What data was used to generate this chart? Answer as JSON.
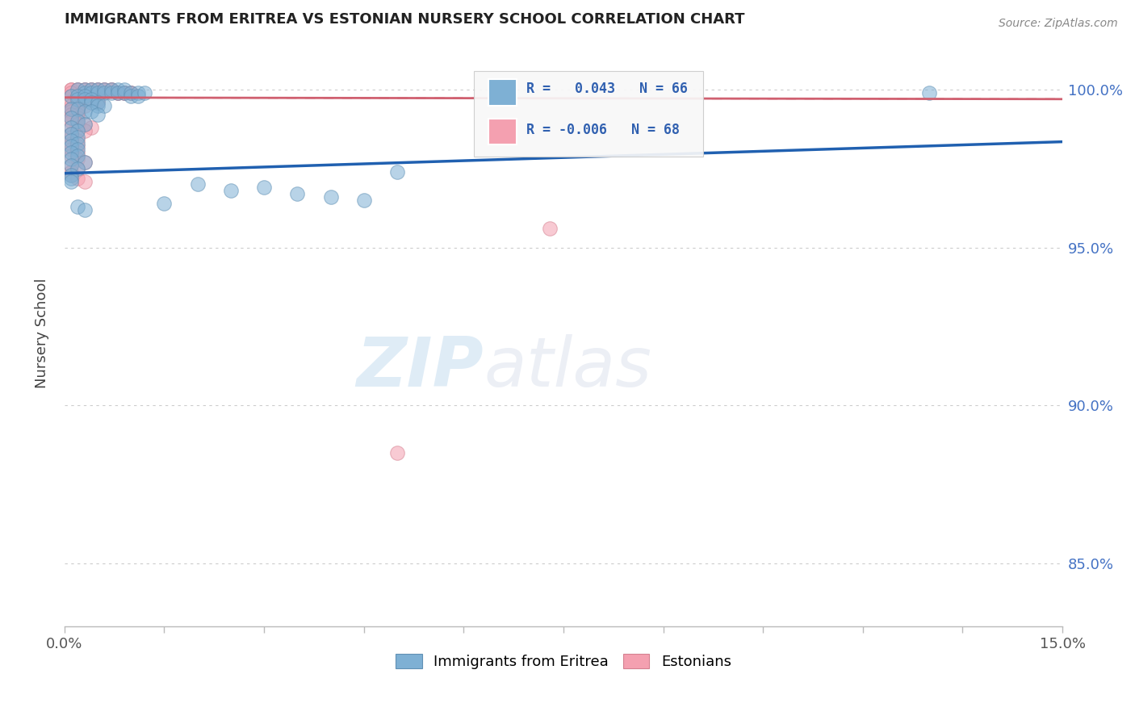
{
  "title": "IMMIGRANTS FROM ERITREA VS ESTONIAN NURSERY SCHOOL CORRELATION CHART",
  "source": "Source: ZipAtlas.com",
  "ylabel": "Nursery School",
  "xlim": [
    0.0,
    0.15
  ],
  "ylim": [
    0.83,
    1.016
  ],
  "ytick_labels_right": [
    "85.0%",
    "90.0%",
    "95.0%",
    "100.0%"
  ],
  "ytick_positions_right": [
    0.85,
    0.9,
    0.95,
    1.0
  ],
  "blue_color": "#7EB0D4",
  "blue_edge_color": "#6090B4",
  "pink_color": "#F4A0B0",
  "pink_edge_color": "#D48090",
  "blue_line_color": "#2060B0",
  "pink_line_color": "#D06070",
  "R_blue": 0.043,
  "N_blue": 66,
  "R_pink": -0.006,
  "N_pink": 68,
  "legend_label_blue": "Immigrants from Eritrea",
  "legend_label_pink": "Estonians",
  "watermark_zip": "ZIP",
  "watermark_atlas": "atlas",
  "blue_line_x": [
    0.0,
    0.15
  ],
  "blue_line_y": [
    0.9735,
    0.9835
  ],
  "pink_line_x": [
    0.0,
    0.15
  ],
  "pink_line_y": [
    0.9975,
    0.997
  ],
  "blue_x": [
    0.002,
    0.003,
    0.003,
    0.004,
    0.004,
    0.005,
    0.005,
    0.006,
    0.006,
    0.007,
    0.007,
    0.008,
    0.008,
    0.009,
    0.009,
    0.01,
    0.01,
    0.011,
    0.011,
    0.012,
    0.001,
    0.002,
    0.002,
    0.003,
    0.003,
    0.004,
    0.004,
    0.005,
    0.005,
    0.006,
    0.001,
    0.002,
    0.003,
    0.004,
    0.005,
    0.001,
    0.002,
    0.003,
    0.001,
    0.002,
    0.001,
    0.002,
    0.001,
    0.002,
    0.001,
    0.002,
    0.001,
    0.002,
    0.001,
    0.003,
    0.001,
    0.002,
    0.05,
    0.001,
    0.001,
    0.001,
    0.02,
    0.03,
    0.025,
    0.035,
    0.04,
    0.13,
    0.045,
    0.015,
    0.002,
    0.003
  ],
  "blue_y": [
    1.0,
    1.0,
    0.999,
    1.0,
    0.999,
    1.0,
    0.999,
    1.0,
    0.999,
    1.0,
    0.999,
    1.0,
    0.999,
    1.0,
    0.999,
    0.999,
    0.998,
    0.999,
    0.998,
    0.999,
    0.998,
    0.998,
    0.997,
    0.998,
    0.997,
    0.997,
    0.996,
    0.996,
    0.995,
    0.995,
    0.994,
    0.994,
    0.993,
    0.993,
    0.992,
    0.991,
    0.99,
    0.989,
    0.988,
    0.987,
    0.986,
    0.985,
    0.984,
    0.983,
    0.982,
    0.981,
    0.98,
    0.979,
    0.978,
    0.977,
    0.976,
    0.975,
    0.974,
    0.973,
    0.972,
    0.971,
    0.97,
    0.969,
    0.968,
    0.967,
    0.966,
    0.999,
    0.965,
    0.964,
    0.963,
    0.962
  ],
  "pink_x": [
    0.001,
    0.001,
    0.002,
    0.002,
    0.003,
    0.003,
    0.004,
    0.004,
    0.005,
    0.005,
    0.006,
    0.006,
    0.007,
    0.007,
    0.008,
    0.008,
    0.009,
    0.009,
    0.01,
    0.01,
    0.001,
    0.001,
    0.002,
    0.002,
    0.003,
    0.003,
    0.004,
    0.004,
    0.005,
    0.005,
    0.001,
    0.002,
    0.003,
    0.001,
    0.002,
    0.001,
    0.002,
    0.001,
    0.002,
    0.001,
    0.002,
    0.001,
    0.002,
    0.001,
    0.002,
    0.003,
    0.004,
    0.001,
    0.002,
    0.003,
    0.001,
    0.001,
    0.002,
    0.001,
    0.002,
    0.001,
    0.002,
    0.001,
    0.002,
    0.003,
    0.001,
    0.002,
    0.001,
    0.073,
    0.001,
    0.002,
    0.05,
    0.003
  ],
  "pink_y": [
    1.0,
    1.0,
    1.0,
    1.0,
    1.0,
    1.0,
    1.0,
    1.0,
    1.0,
    1.0,
    1.0,
    1.0,
    1.0,
    1.0,
    0.999,
    0.999,
    0.999,
    0.999,
    0.999,
    0.999,
    0.999,
    0.998,
    0.998,
    0.998,
    0.998,
    0.997,
    0.997,
    0.997,
    0.997,
    0.996,
    0.996,
    0.996,
    0.995,
    0.995,
    0.994,
    0.994,
    0.993,
    0.993,
    0.992,
    0.992,
    0.991,
    0.991,
    0.99,
    0.99,
    0.989,
    0.989,
    0.988,
    0.988,
    0.987,
    0.987,
    0.986,
    0.985,
    0.984,
    0.983,
    0.982,
    0.981,
    0.98,
    0.979,
    0.978,
    0.977,
    0.976,
    0.975,
    0.974,
    0.956,
    0.973,
    0.972,
    0.885,
    0.971
  ]
}
